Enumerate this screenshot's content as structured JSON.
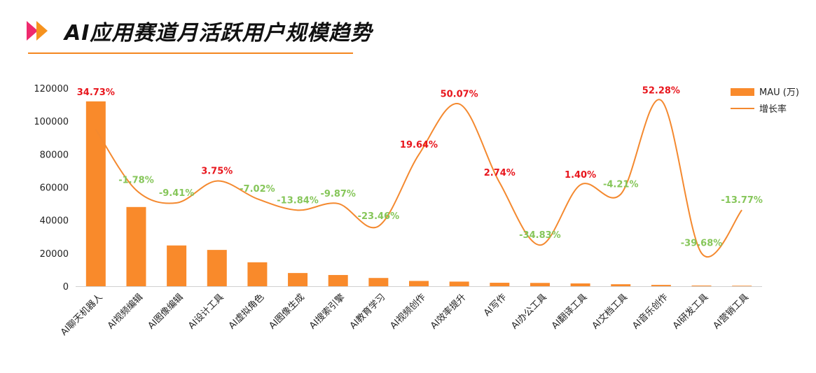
{
  "title": "AI应用赛道月活跃用户规模趋势",
  "colors": {
    "bar": "#f98a2b",
    "line": "#f4892f",
    "positive": "#e8161d",
    "negative": "#86c65a",
    "accent_pink": "#ef2a6e",
    "accent_orange": "#f6921e"
  },
  "chart_data": {
    "type": "bar",
    "categories": [
      "AI聊天机器人",
      "AI视频编辑",
      "AI图像编辑",
      "AI设计工具",
      "AI虚拟角色",
      "AI图像生成",
      "AI搜索引擎",
      "AI教育学习",
      "AI视频创作",
      "AI效率提升",
      "AI写作",
      "AI办公工具",
      "AI翻译工具",
      "AI文档工具",
      "AI音乐创作",
      "AI研发工具",
      "AI营销工具"
    ],
    "series": [
      {
        "name": "MAU (万)",
        "type": "bar",
        "values": [
          112000,
          48000,
          24700,
          22000,
          14500,
          8000,
          6800,
          5000,
          3200,
          2800,
          2100,
          2000,
          1700,
          1200,
          800,
          400,
          300
        ]
      },
      {
        "name": "增长率",
        "type": "line",
        "values": [
          34.73,
          -1.78,
          -9.41,
          3.75,
          -7.02,
          -13.84,
          -9.87,
          -23.46,
          19.64,
          50.07,
          2.74,
          -34.83,
          1.4,
          -4.21,
          52.28,
          -39.68,
          -13.77
        ]
      }
    ],
    "rate_labels": [
      "34.73%",
      "-1.78%",
      "-9.41%",
      "3.75%",
      "-7.02%",
      "-13.84%",
      "-9.87%",
      "-23.46%",
      "19.64%",
      "50.07%",
      "2.74%",
      "-34.83%",
      "1.40%",
      "-4.21%",
      "52.28%",
      "-39.68%",
      "-13.77%"
    ],
    "yticks": [
      "0",
      "20000",
      "40000",
      "60000",
      "80000",
      "100000",
      "120000"
    ],
    "ylim": [
      0,
      120000
    ],
    "legend": [
      "MAU (万)",
      "增长率"
    ],
    "legend_position": "top-right",
    "grid": false
  }
}
